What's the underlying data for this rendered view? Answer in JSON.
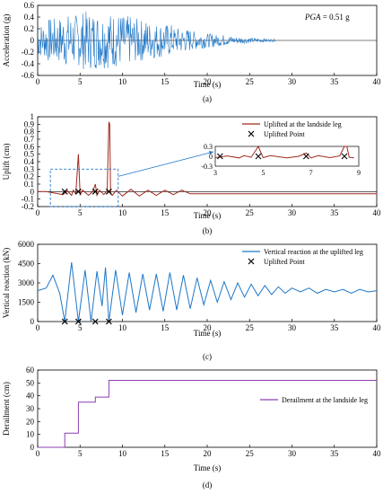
{
  "chart_data": [
    {
      "id": "a",
      "type": "line",
      "panel_label": "(a)",
      "xlabel": "Time  (s)",
      "ylabel": "Acceleration  (g)",
      "annotation_prefix": "PGA",
      "annotation_value": " = 0.51 g",
      "xlim": [
        0,
        40
      ],
      "ylim": [
        -0.6,
        0.6
      ],
      "x_ticks": [
        0,
        5,
        10,
        15,
        20,
        25,
        30,
        35,
        40
      ],
      "y_ticks": [
        -0.6,
        -0.4,
        -0.2,
        0,
        0.2,
        0.4,
        0.6
      ],
      "y_tick_labels": [
        "-0.6",
        "-0.4",
        "-0.2",
        "0",
        "0.2",
        "0.4",
        "0.6"
      ],
      "grid": false,
      "color": "#1f77c8",
      "series": [
        {
          "x": [
            0,
            1,
            2,
            3,
            4,
            5,
            6,
            7,
            8,
            9,
            10,
            11,
            12,
            13,
            14,
            15,
            16,
            17,
            18,
            19,
            20,
            21,
            22,
            23,
            24,
            25,
            26,
            27,
            28,
            29,
            30,
            35,
            40
          ],
          "y": [
            0,
            0.3,
            -0.38,
            0.4,
            -0.45,
            0.41,
            -0.5,
            0.45,
            -0.48,
            0.47,
            -0.42,
            0.38,
            -0.36,
            0.32,
            -0.3,
            0.28,
            -0.22,
            0.2,
            -0.16,
            0.14,
            -0.12,
            0.1,
            -0.08,
            0.06,
            -0.05,
            0.04,
            -0.03,
            0.02,
            0,
            0,
            0,
            0,
            0
          ]
        }
      ]
    },
    {
      "id": "b",
      "type": "line",
      "panel_label": "(b)",
      "xlabel": "Time  (s)",
      "ylabel": "Uplift  (cm)",
      "xlim": [
        0,
        40
      ],
      "ylim": [
        -0.2,
        1.0
      ],
      "x_ticks": [
        0,
        5,
        10,
        15,
        20,
        25,
        30,
        35,
        40
      ],
      "y_ticks": [
        -0.2,
        -0.1,
        0,
        0.1,
        0.2,
        0.3,
        0.4,
        0.5,
        0.6,
        0.7,
        0.8,
        0.9,
        1.0
      ],
      "y_tick_labels": [
        "-0.2",
        "-0.1",
        "0",
        "0.1",
        "0.2",
        "0.3",
        "0.4",
        "0.5",
        "0.6",
        "0.7",
        "0.8",
        "0.9",
        "1"
      ],
      "grid": false,
      "legend": "top-right",
      "series": [
        {
          "name": "Uplifted at the landside leg",
          "color": "#a0281e",
          "x": [
            0,
            1,
            2,
            3,
            3.5,
            4,
            4.2,
            4.5,
            4.8,
            5.0,
            5.3,
            6,
            6.5,
            6.8,
            7.0,
            7.3,
            7.8,
            8.2,
            8.4,
            8.5,
            8.6,
            8.8,
            9.3,
            10,
            11,
            12,
            13,
            14,
            15,
            16,
            17,
            18,
            20,
            22,
            24,
            26,
            28,
            30,
            32,
            34,
            36,
            38,
            40
          ],
          "y": [
            0,
            0,
            -0.02,
            -0.04,
            0.01,
            -0.05,
            0.02,
            -0.03,
            0.5,
            -0.04,
            0.02,
            -0.05,
            0.0,
            0.1,
            -0.05,
            0.02,
            -0.04,
            0.01,
            0.93,
            0.9,
            -0.03,
            -0.05,
            0.02,
            -0.06,
            0.03,
            -0.06,
            0.02,
            -0.05,
            0.02,
            -0.04,
            0.02,
            -0.03,
            -0.03,
            -0.03,
            -0.03,
            -0.03,
            -0.03,
            -0.03,
            -0.03,
            -0.03,
            -0.03,
            -0.03,
            -0.03
          ]
        },
        {
          "name": "Uplifted Point",
          "marker": "x",
          "x": [
            3.2,
            4.8,
            6.8,
            8.4
          ],
          "y": [
            0,
            0,
            0,
            0
          ]
        }
      ],
      "inset": {
        "xlim": [
          3,
          9
        ],
        "ylim": [
          -0.3,
          0.3
        ],
        "x_ticks": [
          3,
          5,
          7,
          9
        ],
        "y_ticks": [
          -0.3,
          0,
          0.3
        ],
        "y_tick_labels": [
          "-0.3",
          "0",
          "0.3"
        ]
      },
      "zoom_box_x": [
        1.5,
        9.5
      ],
      "zoom_box_y": [
        -0.2,
        0.3
      ]
    },
    {
      "id": "c",
      "type": "line",
      "panel_label": "(c)",
      "xlabel": "Time  (s)",
      "ylabel": "Vertical  reaction  (kN)",
      "xlim": [
        0,
        40
      ],
      "ylim": [
        0,
        6000
      ],
      "x_ticks": [
        0,
        5,
        10,
        15,
        20,
        25,
        30,
        35,
        40
      ],
      "y_ticks": [
        0,
        1500,
        3000,
        4500,
        6000
      ],
      "y_tick_labels": [
        "0",
        "1500",
        "3000",
        "4500",
        "6000"
      ],
      "grid": false,
      "legend": "top-right",
      "series": [
        {
          "name": "Vertical reaction at the uplifted leg",
          "color": "#1f77c8",
          "x": [
            0,
            1,
            1.8,
            2.6,
            3.2,
            4.0,
            4.8,
            5.6,
            6.3,
            7.0,
            7.6,
            8.0,
            8.4,
            9.2,
            10.0,
            10.8,
            11.6,
            12.4,
            13.2,
            14.0,
            14.8,
            15.6,
            16.4,
            17.2,
            18.0,
            18.8,
            19.6,
            20.4,
            21.2,
            22.0,
            22.8,
            23.6,
            24.4,
            25.2,
            26.0,
            26.8,
            27.6,
            28.4,
            29.2,
            30.0,
            31.0,
            32.0,
            33.0,
            34.0,
            35.0,
            36.0,
            37.0,
            38.0,
            39.0,
            40.0
          ],
          "y": [
            2400,
            2600,
            3600,
            2200,
            0,
            4600,
            0,
            4000,
            0,
            3900,
            1200,
            4200,
            0,
            4000,
            500,
            3800,
            700,
            3700,
            900,
            3700,
            800,
            3800,
            900,
            3600,
            1000,
            3400,
            1300,
            3200,
            1500,
            3100,
            1700,
            3000,
            1900,
            2900,
            2000,
            2800,
            2100,
            2700,
            2200,
            2600,
            2300,
            2600,
            2200,
            2500,
            2300,
            2500,
            2200,
            2500,
            2300,
            2400
          ]
        },
        {
          "name": "Uplifted Point",
          "marker": "x",
          "x": [
            3.2,
            4.8,
            6.8,
            8.4
          ],
          "y": [
            0,
            0,
            0,
            0
          ]
        }
      ]
    },
    {
      "id": "d",
      "type": "line",
      "panel_label": "(d)",
      "xlabel": "Time  (s)",
      "ylabel": "Derailment  (cm)",
      "xlim": [
        0,
        40
      ],
      "ylim": [
        0,
        60
      ],
      "x_ticks": [
        0,
        5,
        10,
        15,
        20,
        25,
        30,
        35,
        40
      ],
      "y_ticks": [
        0,
        10,
        20,
        30,
        40,
        50,
        60
      ],
      "y_tick_labels": [
        "0",
        "10",
        "20",
        "30",
        "40",
        "50",
        "60"
      ],
      "grid": false,
      "legend": "right",
      "series": [
        {
          "name": "Derailment at the landside leg",
          "color": "#8a3fb0",
          "step": true,
          "x": [
            0,
            3.2,
            3.2,
            4.8,
            4.8,
            6.8,
            6.8,
            8.4,
            8.4,
            40
          ],
          "y": [
            0,
            0,
            11,
            11,
            35,
            35,
            39,
            39,
            52,
            52
          ]
        }
      ]
    }
  ]
}
